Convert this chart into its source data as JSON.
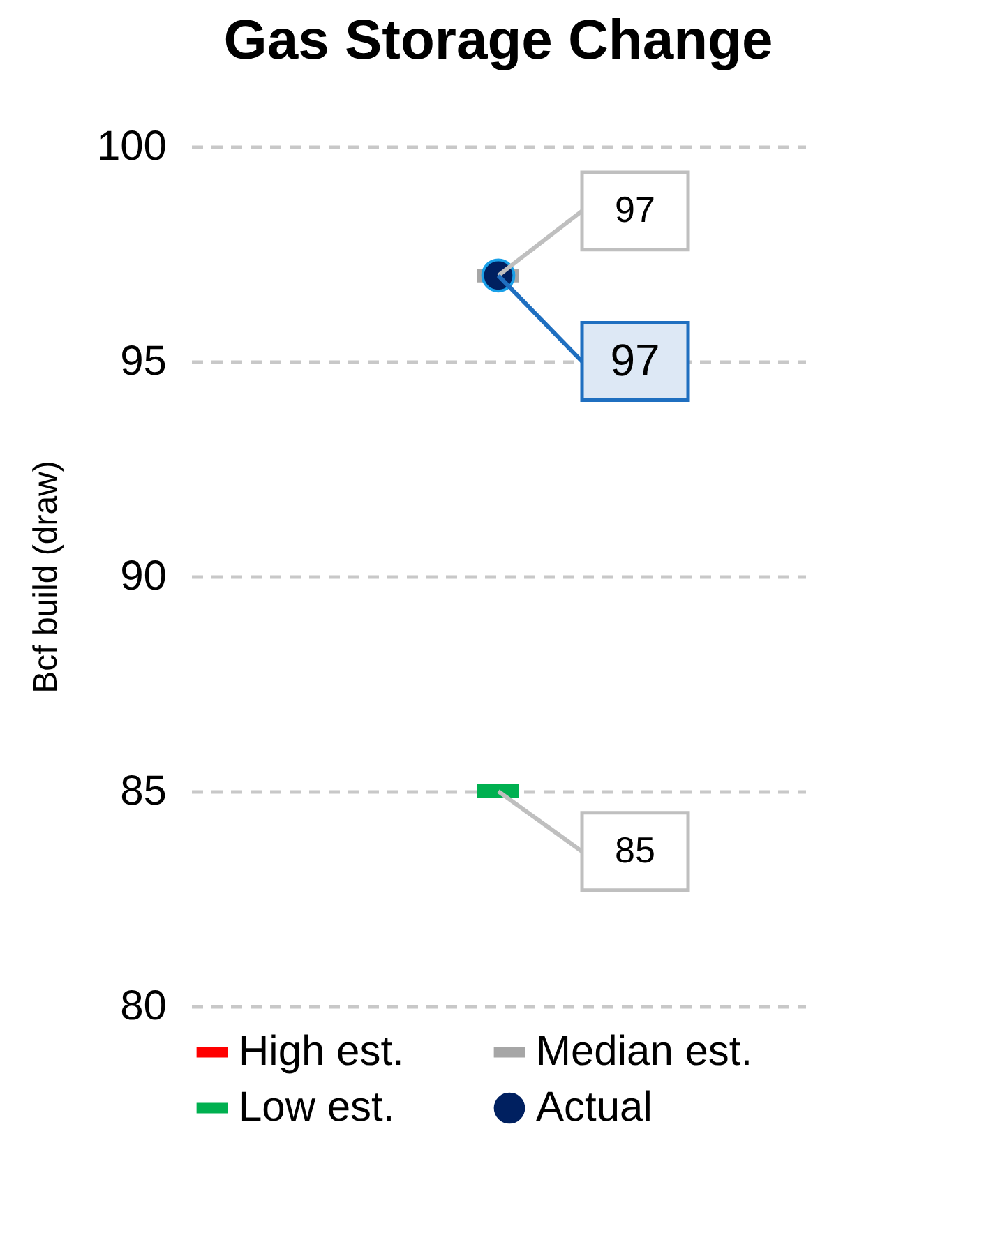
{
  "chart_data": {
    "type": "scatter",
    "title": "Gas Storage Change",
    "ylabel": "Bcf build (draw)",
    "categories": [
      null
    ],
    "series": [
      {
        "name": "High est.",
        "color": "#ff0000",
        "values": [
          null
        ]
      },
      {
        "name": "Median est.",
        "color": "#a6a6a6",
        "values": [
          97
        ],
        "value_labels": [
          "97"
        ]
      },
      {
        "name": "Low est.",
        "color": "#00b050",
        "values": [
          85
        ],
        "value_labels": [
          "85"
        ]
      },
      {
        "name": "Actual",
        "color": "#002060",
        "values": [
          97
        ],
        "value_labels": [
          "97"
        ],
        "marker": "circle"
      }
    ],
    "ylim": [
      80,
      100
    ],
    "yticks": [
      80,
      85,
      90,
      95,
      100
    ],
    "grid": "y",
    "legend": "bottom"
  }
}
